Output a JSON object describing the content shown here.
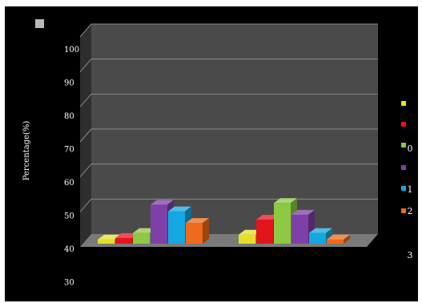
{
  "chart_data": {
    "type": "bar",
    "three_d": true,
    "categories": [
      "",
      ""
    ],
    "series": [
      {
        "color": "#e3e02a",
        "values": [
          40.5,
          42.0
        ]
      },
      {
        "color": "#e3151c",
        "values": [
          41.0,
          46.5
        ]
      },
      {
        "color": "#8fc843",
        "values": [
          42.5,
          51.5
        ]
      },
      {
        "color": "#7f3fa8",
        "values": [
          51.0,
          48.0
        ]
      },
      {
        "color": "#15a8e0",
        "values": [
          49.0,
          42.5
        ]
      },
      {
        "color": "#ee6a1c",
        "values": [
          45.5,
          40.5
        ]
      }
    ],
    "title": "",
    "xlabel": "",
    "ylabel": "Percentage(%)",
    "y_ticks": [
      "100",
      "90",
      "80",
      "70",
      "60",
      "50",
      "40",
      "30"
    ],
    "legend_labels": [
      "0",
      "1",
      "2",
      "3"
    ],
    "legend_position": "right",
    "ylim": [
      40,
      100
    ],
    "grid": true,
    "colors": {
      "background": "#000000",
      "wall": "#4a4a4a",
      "floor": "#7a7a7a",
      "gridline": "#8a8a8a",
      "corner_marker": "#b9b9b9"
    }
  }
}
